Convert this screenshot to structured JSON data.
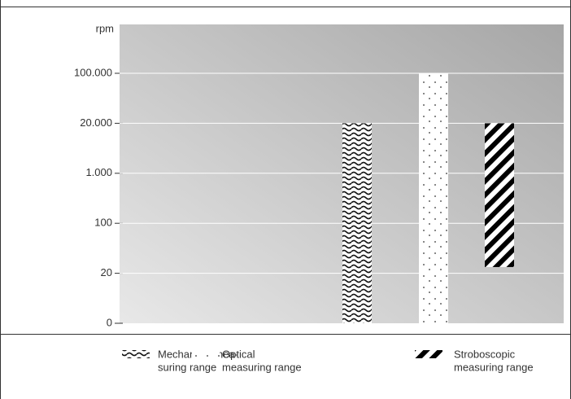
{
  "chart_data": {
    "type": "range_bar",
    "y_label": "rpm",
    "yticks": [
      0,
      20,
      100,
      {
        "value": 1000,
        "label": "1.000"
      },
      {
        "value": 20000,
        "label": "20.000"
      },
      {
        "value": 100000,
        "label": "100.000"
      }
    ],
    "grid": true,
    "series": [
      {
        "name": [
          "Mechanical mea-",
          "suring range"
        ],
        "pattern": "wave",
        "color": "#111111",
        "values": [
          0,
          20000
        ]
      },
      {
        "name": [
          "Optical",
          "measuring range"
        ],
        "pattern": "dots",
        "color": "#333333",
        "values": [
          0,
          100000
        ]
      },
      {
        "name": [
          "Stroboscopic",
          "measuring range"
        ],
        "pattern": "stripes",
        "color": "#000000",
        "values": [
          30,
          20000
        ]
      }
    ]
  }
}
